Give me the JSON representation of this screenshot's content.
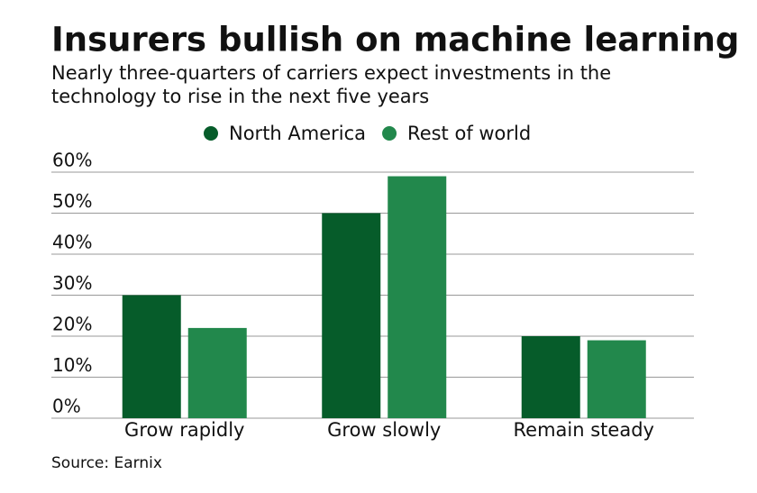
{
  "chart_data": {
    "type": "bar",
    "title": "Insurers bullish on machine learning",
    "subtitle": [
      "Nearly three-quarters of carriers expect investments in the",
      "technology to rise in the next five years"
    ],
    "categories": [
      "Grow rapidly",
      "Grow slowly",
      "Remain steady"
    ],
    "series": [
      {
        "name": "North America",
        "color": "#065c2a",
        "values": [
          30,
          50,
          20
        ]
      },
      {
        "name": "Rest of world",
        "color": "#22884c",
        "values": [
          22,
          59,
          19
        ]
      }
    ],
    "ylim": [
      0,
      60
    ],
    "yticks": [
      {
        "value": 0,
        "label": "0%"
      },
      {
        "value": 10,
        "label": "10%"
      },
      {
        "value": 20,
        "label": "20%"
      },
      {
        "value": 30,
        "label": "30%"
      },
      {
        "value": 40,
        "label": "40%"
      },
      {
        "value": 50,
        "label": "50%"
      },
      {
        "value": 60,
        "label": "60%"
      }
    ],
    "grid": true,
    "source": "Source: Earnix"
  }
}
